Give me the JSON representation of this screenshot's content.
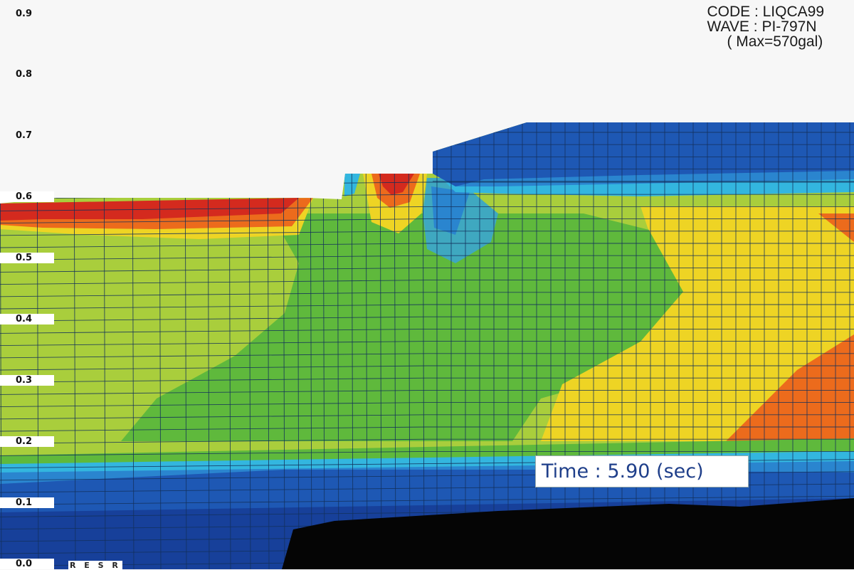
{
  "header": {
    "code_line": "CODE : LIQCA99",
    "wave_line": "WAVE : PI-797N",
    "max_line": "( Max=570gal)"
  },
  "time_label": "Time : 5.90 (sec)",
  "legend_tag": "R E S R",
  "colors": {
    "red": "#d42a1e",
    "orange": "#ec6b1c",
    "yellow": "#eed424",
    "yellow_green": "#a9ce3c",
    "green": "#5fb93c",
    "cyan": "#33b6df",
    "light_blue": "#2a85cf",
    "blue": "#1e58b4",
    "dark_blue": "#17409a",
    "bedrock": "#050505"
  },
  "chart_data": {
    "type": "heatmap",
    "title": "",
    "xlabel": "",
    "ylabel": "",
    "y_tick_labels": [
      "0.9",
      "0.8",
      "0.7",
      "0.6",
      "0.5",
      "0.4",
      "0.3",
      "0.2",
      "0.1",
      "0.0"
    ],
    "legend_placement": "left",
    "grid": true
  }
}
